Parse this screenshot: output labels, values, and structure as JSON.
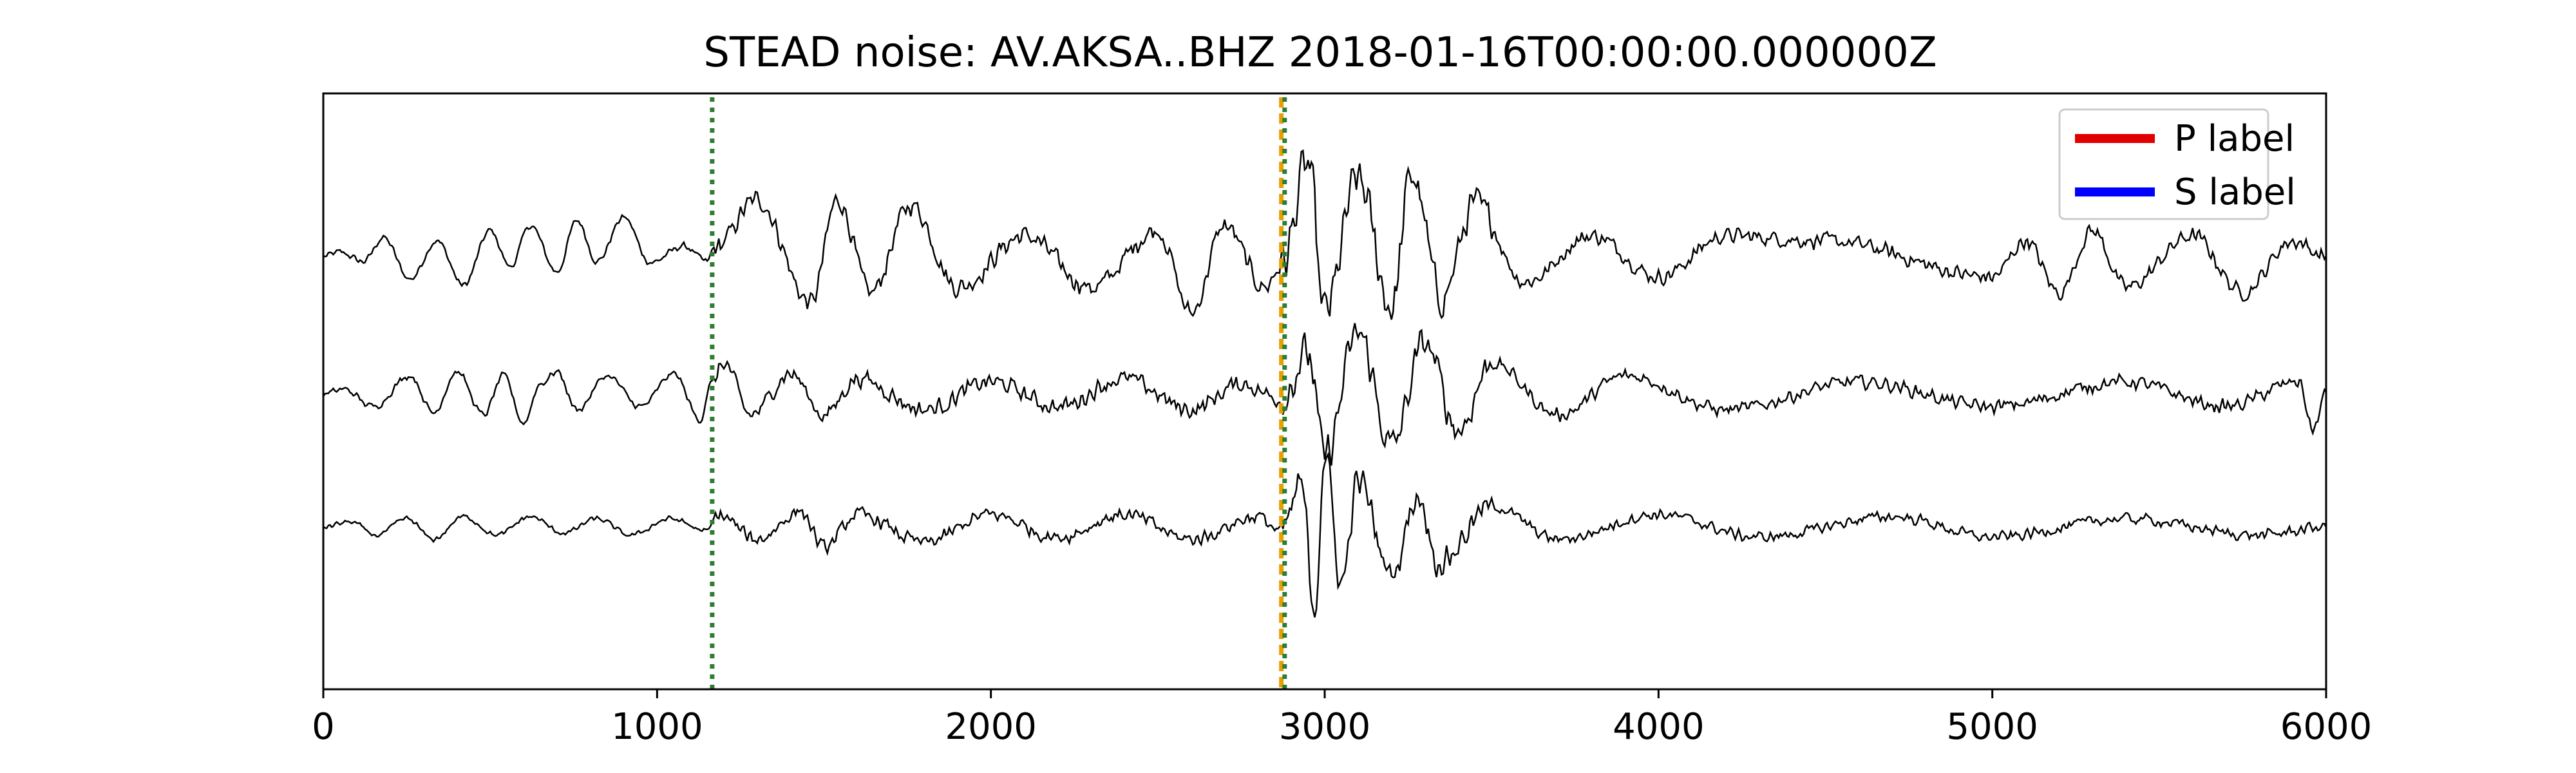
{
  "chart_data": {
    "type": "line",
    "title": "STEAD noise: AV.AKSA..BHZ 2018-01-16T00:00:00.000000Z",
    "xlabel": "",
    "ylabel": "",
    "xlim": [
      0,
      6000
    ],
    "xticks": [
      0,
      1000,
      2000,
      3000,
      4000,
      5000,
      6000
    ],
    "grid": false,
    "legend_position": "top-right",
    "legend": [
      {
        "label": "P label",
        "color": "#e00000"
      },
      {
        "label": "S label",
        "color": "#0000ff"
      }
    ],
    "trace_color": "#000000",
    "traces": [
      {
        "offset": 0,
        "keypoints": [
          [
            0,
            0.0
          ],
          [
            50,
            0.04
          ],
          [
            120,
            -0.05
          ],
          [
            180,
            0.18
          ],
          [
            260,
            -0.22
          ],
          [
            340,
            0.15
          ],
          [
            420,
            -0.28
          ],
          [
            500,
            0.25
          ],
          [
            560,
            -0.1
          ],
          [
            620,
            0.3
          ],
          [
            700,
            -0.15
          ],
          [
            760,
            0.35
          ],
          [
            820,
            -0.05
          ],
          [
            900,
            0.38
          ],
          [
            980,
            -0.06
          ],
          [
            1080,
            0.1
          ],
          [
            1150,
            -0.05
          ],
          [
            1170,
            0.08
          ],
          [
            1300,
            0.55
          ],
          [
            1460,
            -0.45
          ],
          [
            1540,
            0.55
          ],
          [
            1640,
            -0.35
          ],
          [
            1760,
            0.5
          ],
          [
            1900,
            -0.3
          ],
          [
            2100,
            0.2
          ],
          [
            2300,
            -0.3
          ],
          [
            2500,
            0.25
          ],
          [
            2600,
            -0.55
          ],
          [
            2700,
            0.3
          ],
          [
            2820,
            -0.3
          ],
          [
            2870,
            -0.1
          ],
          [
            2950,
            0.9
          ],
          [
            3000,
            -0.55
          ],
          [
            3100,
            0.75
          ],
          [
            3200,
            -0.5
          ],
          [
            3260,
            0.8
          ],
          [
            3350,
            -0.4
          ],
          [
            3450,
            0.5
          ],
          [
            3600,
            -0.25
          ],
          [
            3800,
            0.2
          ],
          [
            4000,
            -0.2
          ],
          [
            4200,
            0.2
          ],
          [
            4500,
            0.15
          ],
          [
            5000,
            -0.2
          ],
          [
            5100,
            0.15
          ],
          [
            5200,
            -0.35
          ],
          [
            5300,
            0.25
          ],
          [
            5400,
            -0.3
          ],
          [
            5600,
            0.2
          ],
          [
            5750,
            -0.35
          ],
          [
            5900,
            0.15
          ],
          [
            6000,
            0.0
          ]
        ],
        "amp_min": 0.04,
        "amp_max": 0.22
      },
      {
        "offset": 1,
        "keypoints": [
          [
            0,
            0.0
          ],
          [
            60,
            0.05
          ],
          [
            150,
            -0.12
          ],
          [
            260,
            0.18
          ],
          [
            330,
            -0.18
          ],
          [
            400,
            0.22
          ],
          [
            480,
            -0.2
          ],
          [
            540,
            0.18
          ],
          [
            600,
            -0.28
          ],
          [
            650,
            0.1
          ],
          [
            700,
            0.22
          ],
          [
            760,
            -0.15
          ],
          [
            850,
            0.18
          ],
          [
            950,
            -0.12
          ],
          [
            1050,
            0.2
          ],
          [
            1130,
            -0.25
          ],
          [
            1160,
            0.1
          ],
          [
            1200,
            0.3
          ],
          [
            1280,
            -0.2
          ],
          [
            1400,
            0.2
          ],
          [
            1500,
            -0.2
          ],
          [
            1600,
            0.15
          ],
          [
            1800,
            -0.15
          ],
          [
            2000,
            0.12
          ],
          [
            2200,
            -0.12
          ],
          [
            2400,
            0.15
          ],
          [
            2600,
            -0.15
          ],
          [
            2750,
            0.1
          ],
          [
            2870,
            -0.05
          ],
          [
            2950,
            0.4
          ],
          [
            3000,
            -0.6
          ],
          [
            3100,
            0.6
          ],
          [
            3200,
            -0.5
          ],
          [
            3300,
            0.5
          ],
          [
            3400,
            -0.35
          ],
          [
            3500,
            0.3
          ],
          [
            3700,
            -0.2
          ],
          [
            3900,
            0.18
          ],
          [
            4200,
            -0.15
          ],
          [
            4600,
            0.12
          ],
          [
            5000,
            -0.12
          ],
          [
            5400,
            0.12
          ],
          [
            5700,
            -0.12
          ],
          [
            5920,
            0.12
          ],
          [
            5960,
            -0.35
          ],
          [
            6000,
            0.0
          ]
        ],
        "amp_min": 0.04,
        "amp_max": 0.18
      },
      {
        "offset": 2,
        "keypoints": [
          [
            0,
            0.0
          ],
          [
            80,
            0.05
          ],
          [
            160,
            -0.08
          ],
          [
            250,
            0.08
          ],
          [
            330,
            -0.12
          ],
          [
            420,
            0.1
          ],
          [
            520,
            -0.08
          ],
          [
            620,
            0.1
          ],
          [
            720,
            -0.06
          ],
          [
            820,
            0.08
          ],
          [
            920,
            -0.08
          ],
          [
            1040,
            0.08
          ],
          [
            1150,
            -0.04
          ],
          [
            1180,
            0.12
          ],
          [
            1300,
            -0.12
          ],
          [
            1430,
            0.15
          ],
          [
            1500,
            -0.2
          ],
          [
            1600,
            0.12
          ],
          [
            1800,
            -0.15
          ],
          [
            2000,
            0.12
          ],
          [
            2200,
            -0.1
          ],
          [
            2400,
            0.12
          ],
          [
            2600,
            -0.12
          ],
          [
            2800,
            0.1
          ],
          [
            2870,
            -0.05
          ],
          [
            2930,
            0.4
          ],
          [
            2970,
            -0.8
          ],
          [
            3000,
            0.7
          ],
          [
            3050,
            -0.55
          ],
          [
            3100,
            0.45
          ],
          [
            3200,
            -0.45
          ],
          [
            3280,
            0.3
          ],
          [
            3340,
            -0.35
          ],
          [
            3500,
            0.2
          ],
          [
            3700,
            -0.12
          ],
          [
            4000,
            0.12
          ],
          [
            4300,
            -0.1
          ],
          [
            4700,
            0.1
          ],
          [
            5000,
            -0.1
          ],
          [
            5400,
            0.08
          ],
          [
            5800,
            -0.08
          ],
          [
            6000,
            0.0
          ]
        ],
        "amp_min": 0.03,
        "amp_max": 0.15
      }
    ],
    "markers": [
      {
        "x": 1165,
        "color": "#2e7d32",
        "style": "dotted"
      },
      {
        "x": 2870,
        "color": "#e6a000",
        "style": "dashed"
      },
      {
        "x": 2880,
        "color": "#2e7d32",
        "style": "dotted"
      }
    ]
  }
}
